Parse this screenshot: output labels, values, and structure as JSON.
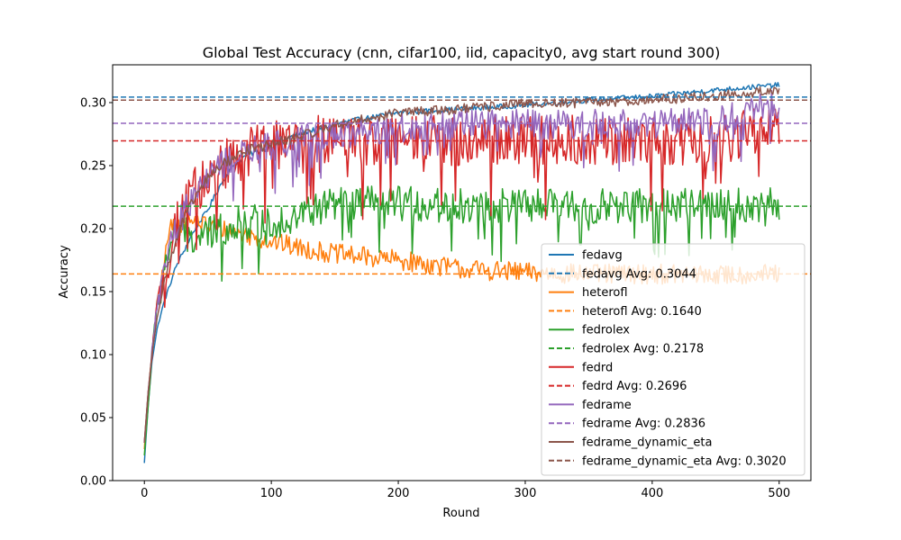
{
  "chart_data": {
    "type": "line",
    "title": "Global Test Accuracy (cnn, cifar100, iid, capacity0, avg start round 300)",
    "xlabel": "Round",
    "ylabel": "Accuracy",
    "xlim": [
      -25,
      525
    ],
    "ylim": [
      0.0,
      0.33
    ],
    "xticks": [
      0,
      100,
      200,
      300,
      400,
      500
    ],
    "yticks": [
      0.0,
      0.05,
      0.1,
      0.15,
      0.2,
      0.25,
      0.3
    ],
    "xtick_labels": [
      "0",
      "100",
      "200",
      "300",
      "400",
      "500"
    ],
    "ytick_labels": [
      "0.00",
      "0.05",
      "0.10",
      "0.15",
      "0.20",
      "0.25",
      "0.30"
    ],
    "grid": false,
    "legend_position": "lower-right",
    "series": [
      {
        "name": "fedavg",
        "avg_label": "fedavg Avg: 0.3044",
        "avg": 0.3044,
        "color": "#1f77b4",
        "noise": 0.002,
        "anchors": [
          [
            0,
            0.014
          ],
          [
            3,
            0.06
          ],
          [
            6,
            0.095
          ],
          [
            10,
            0.12
          ],
          [
            15,
            0.14
          ],
          [
            20,
            0.155
          ],
          [
            25,
            0.17
          ],
          [
            30,
            0.18
          ],
          [
            40,
            0.2
          ],
          [
            50,
            0.215
          ],
          [
            60,
            0.235
          ],
          [
            70,
            0.25
          ],
          [
            80,
            0.258
          ],
          [
            100,
            0.265
          ],
          [
            120,
            0.275
          ],
          [
            140,
            0.28
          ],
          [
            160,
            0.285
          ],
          [
            200,
            0.292
          ],
          [
            250,
            0.295
          ],
          [
            300,
            0.298
          ],
          [
            350,
            0.302
          ],
          [
            400,
            0.305
          ],
          [
            450,
            0.31
          ],
          [
            500,
            0.314
          ]
        ]
      },
      {
        "name": "heterofl",
        "avg_label": "heterofl Avg: 0.1640",
        "avg": 0.164,
        "color": "#ff7f0e",
        "noise": 0.008,
        "anchors": [
          [
            0,
            0.025
          ],
          [
            3,
            0.07
          ],
          [
            6,
            0.1
          ],
          [
            10,
            0.14
          ],
          [
            15,
            0.17
          ],
          [
            20,
            0.2
          ],
          [
            25,
            0.205
          ],
          [
            40,
            0.205
          ],
          [
            60,
            0.2
          ],
          [
            80,
            0.195
          ],
          [
            100,
            0.19
          ],
          [
            120,
            0.185
          ],
          [
            150,
            0.18
          ],
          [
            200,
            0.175
          ],
          [
            250,
            0.168
          ],
          [
            300,
            0.165
          ],
          [
            350,
            0.164
          ],
          [
            400,
            0.164
          ],
          [
            450,
            0.163
          ],
          [
            500,
            0.164
          ]
        ]
      },
      {
        "name": "fedrolex",
        "avg_label": "fedrolex Avg: 0.2178",
        "avg": 0.2178,
        "color": "#2ca02c",
        "noise": 0.014,
        "anchors": [
          [
            0,
            0.02
          ],
          [
            3,
            0.06
          ],
          [
            6,
            0.1
          ],
          [
            10,
            0.14
          ],
          [
            15,
            0.165
          ],
          [
            20,
            0.185
          ],
          [
            25,
            0.2
          ],
          [
            40,
            0.19
          ],
          [
            60,
            0.2
          ],
          [
            80,
            0.205
          ],
          [
            100,
            0.205
          ],
          [
            120,
            0.21
          ],
          [
            150,
            0.22
          ],
          [
            200,
            0.22
          ],
          [
            250,
            0.218
          ],
          [
            300,
            0.218
          ],
          [
            350,
            0.218
          ],
          [
            400,
            0.218
          ],
          [
            450,
            0.218
          ],
          [
            500,
            0.22
          ]
        ]
      },
      {
        "name": "fedrd",
        "avg_label": "fedrd Avg: 0.2696",
        "avg": 0.2696,
        "color": "#d62728",
        "noise": 0.02,
        "anchors": [
          [
            0,
            0.03
          ],
          [
            3,
            0.07
          ],
          [
            6,
            0.1
          ],
          [
            10,
            0.135
          ],
          [
            15,
            0.16
          ],
          [
            20,
            0.18
          ],
          [
            25,
            0.2
          ],
          [
            40,
            0.23
          ],
          [
            60,
            0.25
          ],
          [
            80,
            0.26
          ],
          [
            100,
            0.265
          ],
          [
            120,
            0.27
          ],
          [
            150,
            0.27
          ],
          [
            200,
            0.27
          ],
          [
            250,
            0.27
          ],
          [
            300,
            0.27
          ],
          [
            350,
            0.27
          ],
          [
            400,
            0.27
          ],
          [
            450,
            0.27
          ],
          [
            500,
            0.28
          ]
        ]
      },
      {
        "name": "fedrame",
        "avg_label": "fedrame Avg: 0.2836",
        "avg": 0.2836,
        "color": "#9467bd",
        "noise": 0.012,
        "anchors": [
          [
            0,
            0.03
          ],
          [
            3,
            0.07
          ],
          [
            6,
            0.105
          ],
          [
            10,
            0.14
          ],
          [
            15,
            0.165
          ],
          [
            20,
            0.185
          ],
          [
            25,
            0.2
          ],
          [
            40,
            0.23
          ],
          [
            60,
            0.25
          ],
          [
            80,
            0.26
          ],
          [
            100,
            0.265
          ],
          [
            120,
            0.27
          ],
          [
            150,
            0.275
          ],
          [
            200,
            0.28
          ],
          [
            250,
            0.283
          ],
          [
            300,
            0.283
          ],
          [
            350,
            0.283
          ],
          [
            400,
            0.284
          ],
          [
            450,
            0.284
          ],
          [
            500,
            0.3
          ]
        ]
      },
      {
        "name": "fedrame_dynamic_eta",
        "avg_label": "fedrame_dynamic_eta Avg: 0.3020",
        "avg": 0.302,
        "color": "#8c564b",
        "noise": 0.004,
        "anchors": [
          [
            0,
            0.03
          ],
          [
            3,
            0.07
          ],
          [
            6,
            0.1
          ],
          [
            10,
            0.13
          ],
          [
            15,
            0.155
          ],
          [
            20,
            0.175
          ],
          [
            25,
            0.19
          ],
          [
            30,
            0.205
          ],
          [
            40,
            0.225
          ],
          [
            50,
            0.24
          ],
          [
            60,
            0.25
          ],
          [
            80,
            0.262
          ],
          [
            100,
            0.267
          ],
          [
            120,
            0.272
          ],
          [
            150,
            0.282
          ],
          [
            200,
            0.292
          ],
          [
            250,
            0.295
          ],
          [
            300,
            0.299
          ],
          [
            350,
            0.3
          ],
          [
            400,
            0.302
          ],
          [
            450,
            0.305
          ],
          [
            500,
            0.31
          ]
        ]
      }
    ]
  }
}
